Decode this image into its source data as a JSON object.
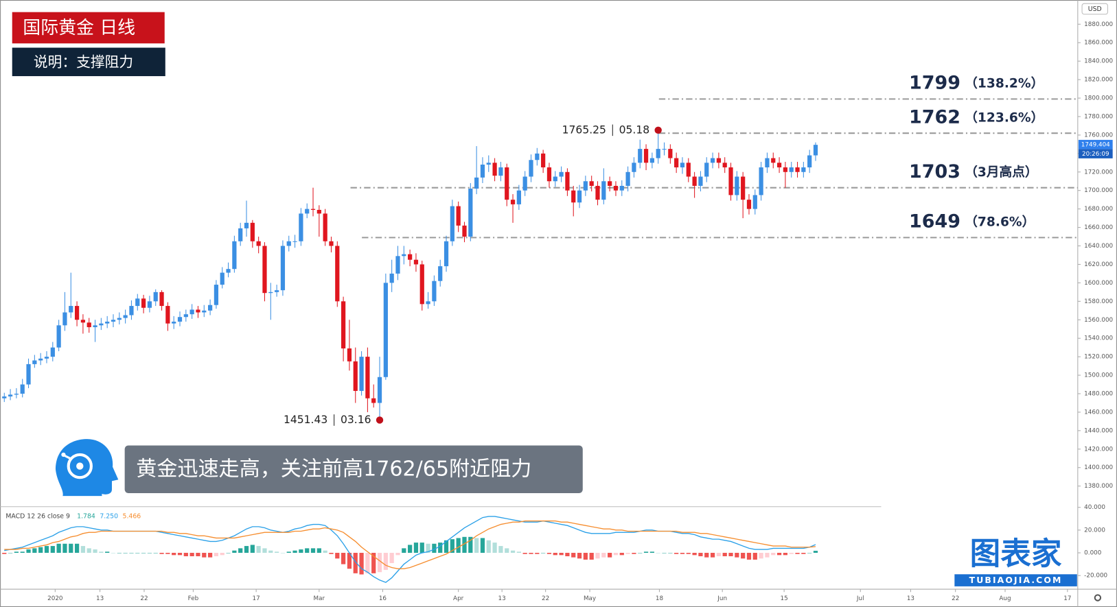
{
  "header": {
    "title": "国际黄金  日线",
    "subtitle": "说明：支撑阻力"
  },
  "caption": "黄金迅速走高，关注前高1762/65附近阻力",
  "logo": {
    "name": "图表家",
    "url": "TUBIAOJIA.COM"
  },
  "chart_data": {
    "type": "candlestick",
    "currency": "USD",
    "last_time": "20:26:09",
    "up_color": "#3b8fe3",
    "down_color": "#e0161f",
    "xlim": [
      -0.7,
      177.3
    ],
    "xticks": [
      {
        "value": 8.4,
        "label": "2020"
      },
      {
        "value": 15.8,
        "label": "13"
      },
      {
        "value": 23.1,
        "label": "22"
      },
      {
        "value": 31.2,
        "label": "Feb"
      },
      {
        "value": 41.6,
        "label": "17"
      },
      {
        "value": 52,
        "label": "Mar"
      },
      {
        "value": 62.5,
        "label": "16"
      },
      {
        "value": 75,
        "label": "Apr"
      },
      {
        "value": 82.2,
        "label": "13"
      },
      {
        "value": 89.4,
        "label": "22"
      },
      {
        "value": 96.7,
        "label": "May"
      },
      {
        "value": 108.2,
        "label": "18"
      },
      {
        "value": 118.6,
        "label": "Jun"
      },
      {
        "value": 128.8,
        "label": "15"
      },
      {
        "value": 141.4,
        "label": "Jul"
      },
      {
        "value": 149.7,
        "label": "13"
      },
      {
        "value": 157.1,
        "label": "22"
      },
      {
        "value": 165.3,
        "label": "Aug"
      },
      {
        "value": 175.6,
        "label": "17"
      }
    ],
    "ylim": [
      1357.7,
      1906.2
    ],
    "yticks": [
      {
        "value": 1380,
        "label": "1380.000"
      },
      {
        "value": 1400,
        "label": "1400.000"
      },
      {
        "value": 1420,
        "label": "1420.000"
      },
      {
        "value": 1440,
        "label": "1440.000"
      },
      {
        "value": 1460,
        "label": "1460.000"
      },
      {
        "value": 1480,
        "label": "1480.000"
      },
      {
        "value": 1500,
        "label": "1500.000"
      },
      {
        "value": 1520,
        "label": "1520.000"
      },
      {
        "value": 1540,
        "label": "1540.000"
      },
      {
        "value": 1560,
        "label": "1560.000"
      },
      {
        "value": 1580,
        "label": "1580.000"
      },
      {
        "value": 1600,
        "label": "1600.000"
      },
      {
        "value": 1620,
        "label": "1620.000"
      },
      {
        "value": 1640,
        "label": "1640.000"
      },
      {
        "value": 1660,
        "label": "1660.000"
      },
      {
        "value": 1680,
        "label": "1680.000"
      },
      {
        "value": 1700,
        "label": "1700.000"
      },
      {
        "value": 1720,
        "label": "1720.000"
      },
      {
        "value": 1740,
        "label": "1740.000"
      },
      {
        "value": 1760,
        "label": "1760.000"
      },
      {
        "value": 1780,
        "label": "1780.000"
      },
      {
        "value": 1800,
        "label": "1800.000"
      },
      {
        "value": 1820,
        "label": "1820.000"
      },
      {
        "value": 1840,
        "label": "1840.000"
      },
      {
        "value": 1860,
        "label": "1860.000"
      },
      {
        "value": 1880,
        "label": "1880.000"
      }
    ],
    "open": [
      1475,
      1477,
      1479,
      1480,
      1490,
      1512,
      1516,
      1518,
      1520,
      1530,
      1554,
      1568,
      1575,
      1560,
      1557,
      1552,
      1554,
      1556,
      1558,
      1560,
      1562,
      1565,
      1575,
      1583,
      1573,
      1580,
      1590,
      1575,
      1556,
      1558,
      1563,
      1566,
      1571,
      1568,
      1570,
      1576,
      1598,
      1611,
      1615,
      1645,
      1659,
      1665,
      1645,
      1640,
      1589,
      1590,
      1592,
      1640,
      1645,
      1645,
      1675,
      1680,
      1679,
      1675,
      1645,
      1640,
      1580,
      1529,
      1515,
      1483,
      1520,
      1475,
      1470,
      1498,
      1600,
      1610,
      1629,
      1631,
      1625,
      1620,
      1577,
      1580,
      1602,
      1618,
      1645,
      1683,
      1662,
      1650,
      1702,
      1714,
      1728,
      1730,
      1716,
      1725,
      1690,
      1685,
      1700,
      1715,
      1733,
      1740,
      1725,
      1710,
      1715,
      1720,
      1700,
      1687,
      1700,
      1710,
      1705,
      1690,
      1710,
      1705,
      1700,
      1705,
      1720,
      1730,
      1745,
      1730,
      1735,
      1745,
      1745,
      1735,
      1725,
      1730,
      1715,
      1705,
      1715,
      1730,
      1735,
      1730,
      1725,
      1695,
      1715,
      1690,
      1680,
      1695,
      1725,
      1735,
      1730,
      1725,
      1720,
      1725,
      1720,
      1725,
      1738
    ],
    "high": [
      1481,
      1485,
      1486,
      1496,
      1518,
      1522,
      1524,
      1526,
      1536,
      1560,
      1590,
      1611,
      1580,
      1566,
      1562,
      1560,
      1562,
      1564,
      1566,
      1568,
      1571,
      1581,
      1588,
      1587,
      1586,
      1593,
      1592,
      1579,
      1564,
      1569,
      1571,
      1577,
      1575,
      1576,
      1582,
      1603,
      1617,
      1622,
      1651,
      1665,
      1689,
      1668,
      1650,
      1644,
      1600,
      1598,
      1646,
      1651,
      1652,
      1681,
      1686,
      1703,
      1684,
      1680,
      1650,
      1645,
      1585,
      1560,
      1530,
      1526,
      1530,
      1490,
      1520,
      1610,
      1625,
      1640,
      1640,
      1636,
      1632,
      1624,
      1590,
      1608,
      1625,
      1651,
      1690,
      1688,
      1666,
      1708,
      1748,
      1736,
      1738,
      1735,
      1731,
      1729,
      1696,
      1706,
      1721,
      1739,
      1746,
      1744,
      1730,
      1721,
      1726,
      1724,
      1705,
      1706,
      1716,
      1716,
      1710,
      1724,
      1715,
      1710,
      1711,
      1726,
      1736,
      1755,
      1750,
      1741,
      1765.25,
      1752,
      1750,
      1741,
      1736,
      1735,
      1720,
      1721,
      1736,
      1741,
      1741,
      1736,
      1730,
      1721,
      1720,
      1696,
      1701,
      1731,
      1741,
      1741,
      1736,
      1731,
      1731,
      1731,
      1731,
      1744,
      1752
    ],
    "low": [
      1471,
      1473,
      1475,
      1476,
      1486,
      1508,
      1511,
      1513,
      1515,
      1526,
      1548,
      1562,
      1553,
      1545,
      1546,
      1536,
      1549,
      1551,
      1552,
      1555,
      1556,
      1560,
      1570,
      1567,
      1568,
      1575,
      1570,
      1548,
      1550,
      1553,
      1558,
      1561,
      1562,
      1563,
      1565,
      1572,
      1594,
      1606,
      1611,
      1640,
      1650,
      1638,
      1632,
      1580,
      1560,
      1585,
      1586,
      1634,
      1638,
      1640,
      1670,
      1672,
      1650,
      1640,
      1633,
      1574,
      1515,
      1505,
      1470,
      1478,
      1460,
      1465,
      1451.43,
      1495,
      1590,
      1603,
      1620,
      1618,
      1612,
      1570,
      1572,
      1575,
      1596,
      1612,
      1640,
      1655,
      1644,
      1645,
      1696,
      1708,
      1720,
      1710,
      1710,
      1683,
      1665,
      1679,
      1694,
      1709,
      1727,
      1719,
      1703,
      1704,
      1709,
      1694,
      1672,
      1681,
      1694,
      1699,
      1684,
      1685,
      1699,
      1694,
      1694,
      1699,
      1714,
      1724,
      1722,
      1724,
      1729,
      1738,
      1729,
      1719,
      1718,
      1709,
      1692,
      1699,
      1709,
      1724,
      1724,
      1719,
      1689,
      1689,
      1670,
      1674,
      1674,
      1689,
      1719,
      1724,
      1719,
      1703,
      1714,
      1714,
      1714,
      1719,
      1732
    ],
    "close": [
      1477,
      1479,
      1480,
      1490,
      1512,
      1516,
      1518,
      1520,
      1530,
      1554,
      1568,
      1575,
      1560,
      1557,
      1552,
      1554,
      1556,
      1558,
      1560,
      1562,
      1565,
      1575,
      1583,
      1573,
      1580,
      1590,
      1575,
      1556,
      1558,
      1563,
      1566,
      1571,
      1568,
      1570,
      1576,
      1598,
      1611,
      1615,
      1645,
      1659,
      1665,
      1645,
      1640,
      1589,
      1590,
      1592,
      1640,
      1645,
      1645,
      1675,
      1680,
      1679,
      1675,
      1645,
      1640,
      1580,
      1529,
      1515,
      1483,
      1520,
      1475,
      1470,
      1498,
      1600,
      1610,
      1629,
      1631,
      1625,
      1620,
      1577,
      1580,
      1602,
      1618,
      1645,
      1683,
      1662,
      1650,
      1702,
      1714,
      1728,
      1730,
      1716,
      1725,
      1690,
      1685,
      1700,
      1715,
      1733,
      1740,
      1725,
      1710,
      1715,
      1720,
      1700,
      1687,
      1700,
      1710,
      1705,
      1690,
      1710,
      1705,
      1700,
      1705,
      1720,
      1730,
      1745,
      1730,
      1735,
      1745,
      1745,
      1735,
      1725,
      1730,
      1715,
      1705,
      1715,
      1730,
      1735,
      1730,
      1725,
      1695,
      1715,
      1690,
      1680,
      1695,
      1725,
      1735,
      1730,
      1725,
      1720,
      1725,
      1720,
      1725,
      1738,
      1749.404
    ],
    "levels": [
      {
        "value": 1799,
        "note": "（138.2%）"
      },
      {
        "value": 1762,
        "note": "（123.6%）"
      },
      {
        "value": 1703,
        "note": "（3月高点）"
      },
      {
        "value": 1649,
        "note": "（78.6%）"
      }
    ],
    "annotations": [
      {
        "value": 1451.43,
        "date": "03.16"
      },
      {
        "value": 1765.25,
        "date": "05.18"
      }
    ],
    "macd": {
      "type": "macd",
      "title": "MACD 12 26 close 9",
      "readout": [
        "1.784",
        "7.250",
        "5.466"
      ],
      "ylim": [
        -32,
        40.6
      ],
      "yticks": [
        {
          "value": 40,
          "label": "40.000"
        },
        {
          "value": 20,
          "label": "20.000"
        },
        {
          "value": 0,
          "label": "0.000"
        },
        {
          "value": -20,
          "label": "-20.000"
        }
      ],
      "histogram": [
        -1,
        0,
        1,
        1,
        3,
        4,
        5,
        6,
        6,
        8,
        8,
        8,
        8,
        6,
        4,
        3,
        1,
        1,
        0,
        0,
        0,
        0,
        0,
        0,
        0,
        0,
        -1,
        -1,
        -2,
        -2,
        -3,
        -3,
        -3,
        -4,
        -4,
        -3,
        -2,
        0,
        2,
        4,
        6,
        7,
        6,
        4,
        2,
        1,
        0,
        1,
        2,
        3,
        4,
        4,
        4,
        2,
        -1,
        -5,
        -10,
        -14,
        -18,
        -19,
        -18,
        -18,
        -17,
        -15,
        -9,
        -2,
        4,
        7,
        9,
        9,
        8,
        8,
        9,
        11,
        12,
        13,
        14,
        14,
        13,
        13,
        11,
        9,
        6,
        4,
        2,
        1,
        -1,
        -1,
        -1,
        0,
        -1,
        -2,
        -2,
        -3,
        -4,
        -5,
        -6,
        -6,
        -5,
        -4,
        -4,
        -2,
        -2,
        -1,
        -1,
        0,
        1,
        1,
        0,
        0,
        0,
        -1,
        -1,
        -1,
        -2,
        -3,
        -4,
        -4,
        -3,
        -3,
        -3,
        -4,
        -5,
        -6,
        -6,
        -5,
        -4,
        -2,
        -2,
        -2,
        -1,
        -1,
        -1,
        0,
        1.784
      ],
      "macd_line": {
        "color": "#2aa0e8",
        "values": [
          2,
          3,
          4,
          5,
          7,
          9,
          11,
          13,
          15,
          18,
          20,
          22,
          23,
          23,
          22,
          21,
          20,
          20,
          19,
          19,
          19,
          19,
          19,
          19,
          19,
          19,
          18,
          17,
          16,
          15,
          14,
          13,
          12,
          11,
          10,
          10,
          11,
          13,
          15,
          18,
          21,
          23,
          23,
          22,
          20,
          19,
          18,
          19,
          21,
          22,
          24,
          25,
          25,
          24,
          20,
          15,
          8,
          0,
          -8,
          -14,
          -17,
          -21,
          -24,
          -26,
          -22,
          -16,
          -10,
          -6,
          -2,
          0,
          1,
          3,
          6,
          10,
          14,
          18,
          22,
          25,
          28,
          31,
          32,
          32,
          31,
          30,
          29,
          28,
          27,
          27,
          27,
          28,
          27,
          26,
          25,
          24,
          22,
          20,
          18,
          17,
          17,
          17,
          17,
          18,
          18,
          18,
          18,
          19,
          20,
          20,
          19,
          19,
          19,
          18,
          17,
          17,
          16,
          14,
          13,
          12,
          12,
          11,
          10,
          8,
          6,
          4,
          3,
          3,
          3,
          4,
          4,
          4,
          4,
          4,
          4,
          5,
          7.25
        ]
      },
      "signal_line": {
        "color": "#f68d2e",
        "values": [
          3,
          3,
          3,
          4,
          4,
          5,
          6,
          7,
          9,
          10,
          12,
          14,
          15,
          17,
          18,
          18,
          19,
          19,
          19,
          19,
          19,
          19,
          19,
          19,
          19,
          19,
          19,
          18,
          18,
          17,
          17,
          16,
          15,
          15,
          14,
          13,
          13,
          13,
          13,
          14,
          15,
          16,
          17,
          18,
          18,
          18,
          18,
          18,
          19,
          19,
          20,
          21,
          21,
          22,
          21,
          20,
          18,
          14,
          10,
          5,
          1,
          -3,
          -7,
          -11,
          -13,
          -14,
          -14,
          -13,
          -11,
          -9,
          -7,
          -5,
          -3,
          -1,
          2,
          5,
          8,
          11,
          15,
          18,
          21,
          23,
          25,
          26,
          27,
          27,
          28,
          28,
          28,
          28,
          28,
          28,
          27,
          27,
          26,
          25,
          24,
          23,
          22,
          21,
          21,
          20,
          20,
          19,
          19,
          19,
          19,
          19,
          19,
          19,
          19,
          19,
          18,
          18,
          18,
          17,
          17,
          16,
          15,
          14,
          13,
          12,
          11,
          10,
          9,
          8,
          7,
          6,
          6,
          6,
          5,
          5,
          5,
          5,
          5.466
        ]
      }
    }
  }
}
